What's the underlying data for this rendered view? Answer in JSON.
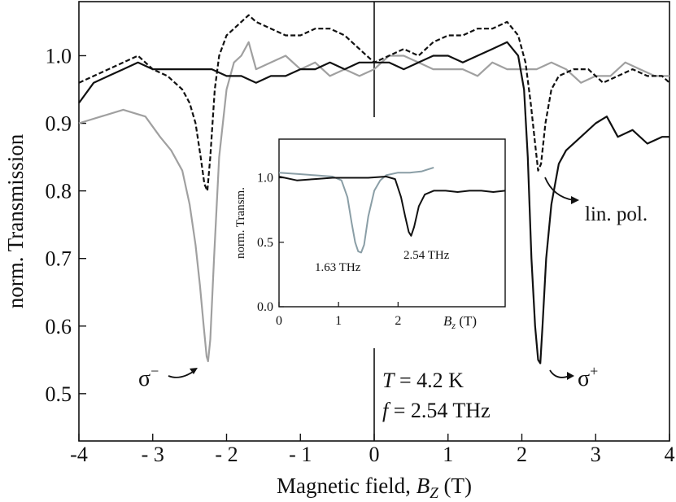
{
  "chart_data": {
    "type": "line",
    "main": {
      "xlabel_prefix": "Magnetic field, ",
      "xlabel_var": "B",
      "xlabel_sub": "Z",
      "xlabel_unit": " (T)",
      "ylabel": "norm. Transmission",
      "xlim": [
        -4,
        4
      ],
      "ylim": [
        0.43,
        1.08
      ],
      "xticks": [
        -4,
        -3,
        -2,
        -1,
        0,
        1,
        2,
        3,
        4
      ],
      "xtick_labels": [
        "-4",
        "- 3",
        "- 2",
        "- 1",
        "0",
        "1",
        "2",
        "3",
        "4"
      ],
      "yticks": [
        0.5,
        0.6,
        0.7,
        0.8,
        0.9,
        1.0
      ],
      "ytick_labels": [
        "0.5",
        "0.6",
        "0.7",
        "0.8",
        "0.9",
        "1.0"
      ],
      "series": [
        {
          "name": "σ⁻ (gray)",
          "color": "#a0a0a0",
          "style": "solid",
          "x": [
            -4.0,
            -3.7,
            -3.4,
            -3.1,
            -2.9,
            -2.75,
            -2.6,
            -2.5,
            -2.42,
            -2.36,
            -2.31,
            -2.27,
            -2.25,
            -2.22,
            -2.17,
            -2.1,
            -2.0,
            -1.9,
            -1.8,
            -1.7,
            -1.6,
            -1.4,
            -1.2,
            -1.0,
            -0.8,
            -0.6,
            -0.4,
            -0.2,
            0.0,
            0.2,
            0.4,
            0.6,
            0.8,
            1.0,
            1.2,
            1.4,
            1.6,
            1.8,
            2.0,
            2.2,
            2.4,
            2.6,
            2.8,
            3.0,
            3.2,
            3.4,
            3.6,
            3.8,
            4.0
          ],
          "y": [
            0.9,
            0.91,
            0.92,
            0.91,
            0.88,
            0.86,
            0.83,
            0.78,
            0.72,
            0.66,
            0.6,
            0.555,
            0.548,
            0.58,
            0.7,
            0.85,
            0.95,
            0.99,
            1.0,
            1.02,
            0.98,
            0.99,
            1.0,
            0.98,
            0.99,
            0.97,
            0.98,
            0.97,
            0.98,
            1.0,
            1.0,
            0.99,
            0.98,
            0.98,
            0.98,
            0.97,
            0.99,
            0.98,
            0.98,
            0.98,
            0.99,
            0.98,
            0.96,
            0.97,
            0.97,
            0.99,
            0.98,
            0.97,
            0.97
          ]
        },
        {
          "name": "lin. pol. (dashed)",
          "color": "#111111",
          "style": "dashed",
          "x": [
            -4.0,
            -3.8,
            -3.6,
            -3.4,
            -3.2,
            -3.0,
            -2.8,
            -2.6,
            -2.5,
            -2.42,
            -2.35,
            -2.3,
            -2.26,
            -2.22,
            -2.16,
            -2.1,
            -2.0,
            -1.9,
            -1.8,
            -1.7,
            -1.6,
            -1.4,
            -1.2,
            -1.0,
            -0.8,
            -0.6,
            -0.4,
            -0.2,
            0.0,
            0.2,
            0.4,
            0.6,
            0.8,
            1.0,
            1.2,
            1.4,
            1.6,
            1.8,
            1.95,
            2.05,
            2.12,
            2.18,
            2.22,
            2.26,
            2.32,
            2.4,
            2.5,
            2.7,
            2.9,
            3.1,
            3.3,
            3.5,
            3.7,
            3.9,
            4.0
          ],
          "y": [
            0.96,
            0.97,
            0.98,
            0.99,
            1.0,
            0.98,
            0.97,
            0.95,
            0.93,
            0.9,
            0.85,
            0.81,
            0.8,
            0.85,
            0.95,
            1.0,
            1.03,
            1.04,
            1.05,
            1.06,
            1.05,
            1.04,
            1.03,
            1.03,
            1.04,
            1.04,
            1.03,
            1.01,
            0.99,
            1.0,
            1.01,
            1.0,
            1.02,
            1.03,
            1.03,
            1.04,
            1.04,
            1.05,
            1.03,
            0.99,
            0.93,
            0.87,
            0.83,
            0.84,
            0.9,
            0.95,
            0.97,
            0.98,
            0.98,
            0.96,
            0.97,
            0.98,
            0.97,
            0.97,
            0.96
          ]
        },
        {
          "name": "σ⁺ (black)",
          "color": "#111111",
          "style": "solid",
          "x": [
            -4.0,
            -3.8,
            -3.6,
            -3.4,
            -3.2,
            -3.0,
            -2.8,
            -2.6,
            -2.4,
            -2.2,
            -2.0,
            -1.8,
            -1.6,
            -1.4,
            -1.2,
            -1.0,
            -0.8,
            -0.6,
            -0.4,
            -0.2,
            0.0,
            0.2,
            0.4,
            0.6,
            0.8,
            1.0,
            1.2,
            1.4,
            1.6,
            1.8,
            1.95,
            2.03,
            2.08,
            2.13,
            2.18,
            2.22,
            2.25,
            2.28,
            2.33,
            2.4,
            2.5,
            2.6,
            2.8,
            3.0,
            3.15,
            3.3,
            3.5,
            3.7,
            3.9,
            4.0
          ],
          "y": [
            0.93,
            0.96,
            0.97,
            0.98,
            0.99,
            0.98,
            0.98,
            0.98,
            0.98,
            0.98,
            0.97,
            0.97,
            0.96,
            0.97,
            0.97,
            0.98,
            0.98,
            0.99,
            0.98,
            0.99,
            0.99,
            0.99,
            0.98,
            0.99,
            1.0,
            1.0,
            0.99,
            1.0,
            1.01,
            1.02,
            1.0,
            0.95,
            0.85,
            0.7,
            0.6,
            0.55,
            0.545,
            0.6,
            0.7,
            0.78,
            0.84,
            0.86,
            0.88,
            0.9,
            0.91,
            0.88,
            0.89,
            0.87,
            0.88,
            0.88
          ]
        }
      ],
      "annotations": {
        "sigma_minus": "σ",
        "sigma_minus_sup": "−",
        "sigma_plus": "σ",
        "sigma_plus_sup": "+",
        "lin_pol": "lin. pol.",
        "temperature_var": "T",
        "temperature_value": " = 4.2 K",
        "frequency_var": "f",
        "frequency_value": " = 2.54 THz"
      }
    },
    "inset": {
      "xlabel_var": "B",
      "xlabel_sub": "z",
      "xlabel_unit": " (T)",
      "ylabel": "norm. Transm.",
      "xlim": [
        0,
        3.8
      ],
      "ylim": [
        0,
        1.3
      ],
      "xticks": [
        0,
        1,
        2
      ],
      "xtick_labels": [
        "0",
        "1",
        "2"
      ],
      "yticks": [
        0.0,
        0.5,
        1.0
      ],
      "ytick_labels": [
        "0.0",
        "0.5",
        "1.0"
      ],
      "series": [
        {
          "name": "1.63 THz",
          "color": "#8a9ea6",
          "x": [
            0.0,
            0.3,
            0.6,
            0.9,
            1.05,
            1.15,
            1.22,
            1.28,
            1.33,
            1.38,
            1.43,
            1.5,
            1.6,
            1.7,
            1.8,
            2.0,
            2.2,
            2.4,
            2.6
          ],
          "y": [
            1.04,
            1.03,
            1.02,
            1.01,
            0.98,
            0.85,
            0.65,
            0.5,
            0.43,
            0.42,
            0.48,
            0.7,
            0.9,
            0.98,
            1.02,
            1.04,
            1.04,
            1.05,
            1.08
          ]
        },
        {
          "name": "2.54 THz",
          "color": "#111111",
          "x": [
            0.0,
            0.3,
            0.6,
            0.9,
            1.2,
            1.5,
            1.8,
            1.95,
            2.05,
            2.12,
            2.18,
            2.22,
            2.27,
            2.35,
            2.45,
            2.6,
            2.8,
            3.0,
            3.2,
            3.4,
            3.6,
            3.8
          ],
          "y": [
            1.01,
            0.98,
            0.99,
            1.0,
            1.0,
            1.0,
            1.01,
            0.99,
            0.85,
            0.7,
            0.58,
            0.55,
            0.62,
            0.78,
            0.87,
            0.9,
            0.9,
            0.89,
            0.9,
            0.9,
            0.89,
            0.9
          ]
        }
      ],
      "labels": [
        "1.63 THz",
        "2.54 THz"
      ]
    }
  }
}
